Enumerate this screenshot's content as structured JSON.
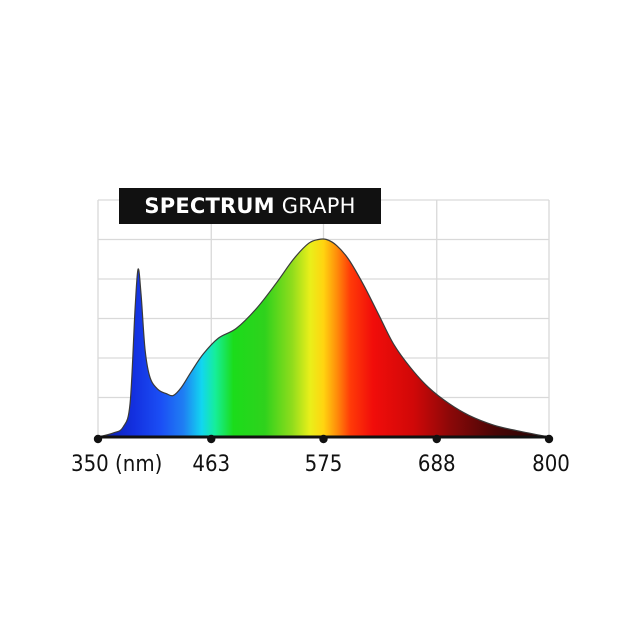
{
  "chart_data": {
    "type": "area",
    "title_bold": "SPECTRUM",
    "title_regular": "GRAPH",
    "x_unit": "(nm)",
    "xlim": [
      350,
      800
    ],
    "ylim": [
      0,
      1.2
    ],
    "grid": true,
    "x_ticks": [
      {
        "value": 350,
        "label": "350"
      },
      {
        "value": 463,
        "label": "463"
      },
      {
        "value": 575,
        "label": "575"
      },
      {
        "value": 688,
        "label": "688"
      },
      {
        "value": 800,
        "label": "800"
      }
    ],
    "series": [
      {
        "x": [
          350,
          365,
          375,
          382,
          387,
          390,
          393,
          397,
          402,
          410,
          418,
          425,
          433,
          443,
          455,
          470,
          488,
          508,
          528,
          545,
          560,
          570,
          578,
          588,
          600,
          615,
          630,
          645,
          662,
          680,
          700,
          720,
          745,
          770,
          800
        ],
        "y": [
          0.0,
          0.02,
          0.05,
          0.17,
          0.65,
          0.85,
          0.72,
          0.44,
          0.3,
          0.24,
          0.22,
          0.21,
          0.25,
          0.33,
          0.42,
          0.5,
          0.55,
          0.65,
          0.78,
          0.9,
          0.98,
          1.0,
          1.0,
          0.97,
          0.9,
          0.77,
          0.62,
          0.47,
          0.35,
          0.25,
          0.17,
          0.11,
          0.06,
          0.03,
          0.0
        ]
      }
    ]
  }
}
